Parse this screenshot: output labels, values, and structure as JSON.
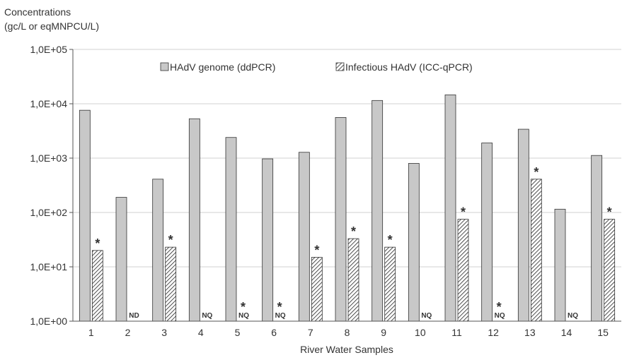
{
  "chart_data": {
    "type": "bar",
    "ylabel_line1": "Concentrations",
    "ylabel_line2": "(gc/L or eqMNPCU/L)",
    "xlabel": "River Water Samples",
    "yscale": "log",
    "ylim": [
      1,
      100000
    ],
    "ytick_values": [
      1,
      10,
      100,
      1000,
      10000,
      100000
    ],
    "ytick_labels": [
      "1,0E+00",
      "1,0E+01",
      "1,0E+02",
      "1,0E+03",
      "1,0E+04",
      "1,0E+05"
    ],
    "grid": true,
    "legend_position": "top-center",
    "categories": [
      "1",
      "2",
      "3",
      "4",
      "5",
      "6",
      "7",
      "8",
      "9",
      "10",
      "11",
      "12",
      "13",
      "14",
      "15"
    ],
    "series": [
      {
        "name": "HAdV genome (ddPCR)",
        "color": "#c8c8c8",
        "pattern": "solid",
        "values": [
          7600,
          190,
          410,
          5300,
          2400,
          970,
          1280,
          5600,
          11500,
          800,
          14600,
          1900,
          3400,
          115,
          1120
        ]
      },
      {
        "name": "Infectious HAdV (ICC-qPCR)",
        "color": "#ffffff",
        "pattern": "hatched",
        "values": [
          20,
          null,
          23,
          null,
          null,
          null,
          15,
          33,
          23,
          null,
          75,
          null,
          410,
          null,
          75
        ]
      }
    ],
    "annotations": [
      {
        "category_index": 0,
        "star": "*",
        "label": ""
      },
      {
        "category_index": 1,
        "star": "",
        "label": "ND"
      },
      {
        "category_index": 2,
        "star": "*",
        "label": ""
      },
      {
        "category_index": 3,
        "star": "",
        "label": "NQ"
      },
      {
        "category_index": 4,
        "star": "*",
        "label": "NQ"
      },
      {
        "category_index": 5,
        "star": "*",
        "label": "NQ"
      },
      {
        "category_index": 6,
        "star": "*",
        "label": ""
      },
      {
        "category_index": 7,
        "star": "*",
        "label": ""
      },
      {
        "category_index": 8,
        "star": "*",
        "label": ""
      },
      {
        "category_index": 9,
        "star": "",
        "label": "NQ"
      },
      {
        "category_index": 10,
        "star": "*",
        "label": ""
      },
      {
        "category_index": 11,
        "star": "*",
        "label": "NQ"
      },
      {
        "category_index": 12,
        "star": "*",
        "label": ""
      },
      {
        "category_index": 13,
        "star": "",
        "label": "NQ"
      },
      {
        "category_index": 14,
        "star": "*",
        "label": ""
      }
    ]
  }
}
